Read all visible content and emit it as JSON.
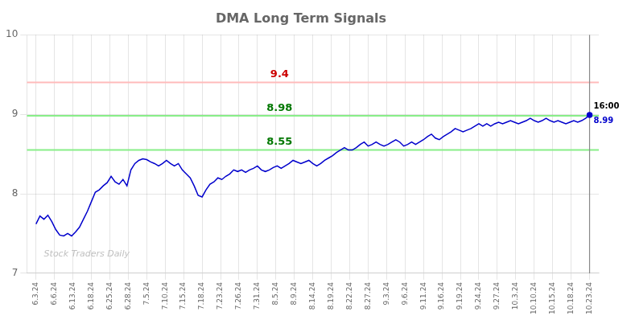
{
  "chart_data": {
    "type": "line",
    "title": "DMA Long Term Signals",
    "color": "#0000cc",
    "grid": true,
    "xlim": [
      -0.5,
      30.5
    ],
    "xticks": [
      {
        "value": 0,
        "label": "6.3.24"
      },
      {
        "value": 1,
        "label": "6.6.24"
      },
      {
        "value": 2,
        "label": "6.13.24"
      },
      {
        "value": 3,
        "label": "6.18.24"
      },
      {
        "value": 4,
        "label": "6.25.24"
      },
      {
        "value": 5,
        "label": "6.28.24"
      },
      {
        "value": 6,
        "label": "7.5.24"
      },
      {
        "value": 7,
        "label": "7.10.24"
      },
      {
        "value": 8,
        "label": "7.15.24"
      },
      {
        "value": 9,
        "label": "7.18.24"
      },
      {
        "value": 10,
        "label": "7.23.24"
      },
      {
        "value": 11,
        "label": "7.26.24"
      },
      {
        "value": 12,
        "label": "7.31.24"
      },
      {
        "value": 13,
        "label": "8.5.24"
      },
      {
        "value": 14,
        "label": "8.9.24"
      },
      {
        "value": 15,
        "label": "8.14.24"
      },
      {
        "value": 16,
        "label": "8.19.24"
      },
      {
        "value": 17,
        "label": "8.22.24"
      },
      {
        "value": 18,
        "label": "8.27.24"
      },
      {
        "value": 19,
        "label": "9.3.24"
      },
      {
        "value": 20,
        "label": "9.6.24"
      },
      {
        "value": 21,
        "label": "9.11.24"
      },
      {
        "value": 22,
        "label": "9.16.24"
      },
      {
        "value": 23,
        "label": "9.19.24"
      },
      {
        "value": 24,
        "label": "9.24.24"
      },
      {
        "value": 25,
        "label": "9.27.24"
      },
      {
        "value": 26,
        "label": "10.3.24"
      },
      {
        "value": 27,
        "label": "10.10.24"
      },
      {
        "value": 28,
        "label": "10.15.24"
      },
      {
        "value": 29,
        "label": "10.18.24"
      },
      {
        "value": 30,
        "label": "10.23.24"
      }
    ],
    "ylim": [
      7,
      10
    ],
    "yticks": [
      7,
      8,
      9,
      10
    ],
    "x": [
      0,
      0.2143,
      0.4286,
      0.6429,
      0.8571,
      1.0714,
      1.2857,
      1.5,
      1.7143,
      1.9286,
      2.1429,
      2.3571,
      2.5714,
      2.7857,
      3,
      3.2143,
      3.4286,
      3.6429,
      3.8571,
      4.0714,
      4.2857,
      4.5,
      4.7143,
      4.9286,
      5.1429,
      5.3571,
      5.5714,
      5.7857,
      6,
      6.2143,
      6.4286,
      6.6429,
      6.8571,
      7.0714,
      7.2857,
      7.5,
      7.7143,
      7.9286,
      8.1429,
      8.3571,
      8.5714,
      8.7857,
      9,
      9.2143,
      9.4286,
      9.6429,
      9.8571,
      10.0714,
      10.2857,
      10.5,
      10.7143,
      10.9286,
      11.1429,
      11.3571,
      11.5714,
      11.7857,
      12,
      12.2143,
      12.4286,
      12.6429,
      12.8571,
      13.0714,
      13.2857,
      13.5,
      13.7143,
      13.9286,
      14.1429,
      14.3571,
      14.5714,
      14.7857,
      15,
      15.2143,
      15.4286,
      15.6429,
      15.8571,
      16.0714,
      16.2857,
      16.5,
      16.7143,
      16.9286,
      17.1429,
      17.3571,
      17.5714,
      17.7857,
      18,
      18.2143,
      18.4286,
      18.6429,
      18.8571,
      19.0714,
      19.2857,
      19.5,
      19.7143,
      19.9286,
      20.1429,
      20.3571,
      20.5714,
      20.7857,
      21,
      21.2143,
      21.4286,
      21.6429,
      21.8571,
      22.0714,
      22.2857,
      22.5,
      22.7143,
      22.9286,
      23.1429,
      23.3571,
      23.5714,
      23.7857,
      24,
      24.2143,
      24.4286,
      24.6429,
      24.8571,
      25.0714,
      25.2857,
      25.5,
      25.7143,
      25.9286,
      26.1429,
      26.3571,
      26.5714,
      26.7857,
      27,
      27.2143,
      27.4286,
      27.6429,
      27.8571,
      28.0714,
      28.2857,
      28.5,
      28.7143,
      28.9286,
      29.1429,
      29.3571,
      29.5714,
      29.7857,
      30
    ],
    "values": [
      7.62,
      7.72,
      7.68,
      7.73,
      7.65,
      7.55,
      7.48,
      7.47,
      7.5,
      7.47,
      7.52,
      7.58,
      7.68,
      7.78,
      7.9,
      8.02,
      8.05,
      8.1,
      8.14,
      8.22,
      8.15,
      8.12,
      8.18,
      8.1,
      8.3,
      8.38,
      8.42,
      8.44,
      8.43,
      8.4,
      8.38,
      8.35,
      8.38,
      8.42,
      8.38,
      8.35,
      8.38,
      8.3,
      8.25,
      8.2,
      8.1,
      7.98,
      7.96,
      8.05,
      8.12,
      8.15,
      8.2,
      8.18,
      8.22,
      8.25,
      8.3,
      8.28,
      8.3,
      8.27,
      8.3,
      8.32,
      8.35,
      8.3,
      8.28,
      8.3,
      8.33,
      8.35,
      8.32,
      8.35,
      8.38,
      8.42,
      8.4,
      8.38,
      8.4,
      8.42,
      8.38,
      8.35,
      8.38,
      8.42,
      8.45,
      8.48,
      8.52,
      8.55,
      8.58,
      8.55,
      8.55,
      8.58,
      8.62,
      8.65,
      8.6,
      8.62,
      8.65,
      8.62,
      8.6,
      8.62,
      8.65,
      8.68,
      8.65,
      8.6,
      8.62,
      8.65,
      8.62,
      8.65,
      8.68,
      8.72,
      8.75,
      8.7,
      8.68,
      8.72,
      8.75,
      8.78,
      8.82,
      8.8,
      8.78,
      8.8,
      8.82,
      8.85,
      8.88,
      8.85,
      8.88,
      8.85,
      8.88,
      8.9,
      8.88,
      8.9,
      8.92,
      8.9,
      8.88,
      8.9,
      8.92,
      8.95,
      8.92,
      8.9,
      8.92,
      8.95,
      8.92,
      8.9,
      8.92,
      8.9,
      8.88,
      8.9,
      8.92,
      8.9,
      8.92,
      8.95,
      8.99
    ],
    "hlines": [
      {
        "y": 9.4,
        "color": "#ffbbbb",
        "label": "9.4",
        "label_color": "#cc0000"
      },
      {
        "y": 8.98,
        "color": "#88ee88",
        "label": "8.98",
        "label_color": "#007700"
      },
      {
        "y": 8.55,
        "color": "#88ee88",
        "label": "8.55",
        "label_color": "#007700"
      }
    ],
    "vlines": [
      30
    ],
    "annotations": [
      {
        "text": "16:00",
        "x": 30,
        "y": 8.99
      },
      {
        "text": "8.99",
        "x": 30,
        "y": 8.99,
        "color": "#0000cc"
      }
    ],
    "watermark": {
      "text": "Stock Traders Daily",
      "color": "#c0c0c0"
    }
  }
}
